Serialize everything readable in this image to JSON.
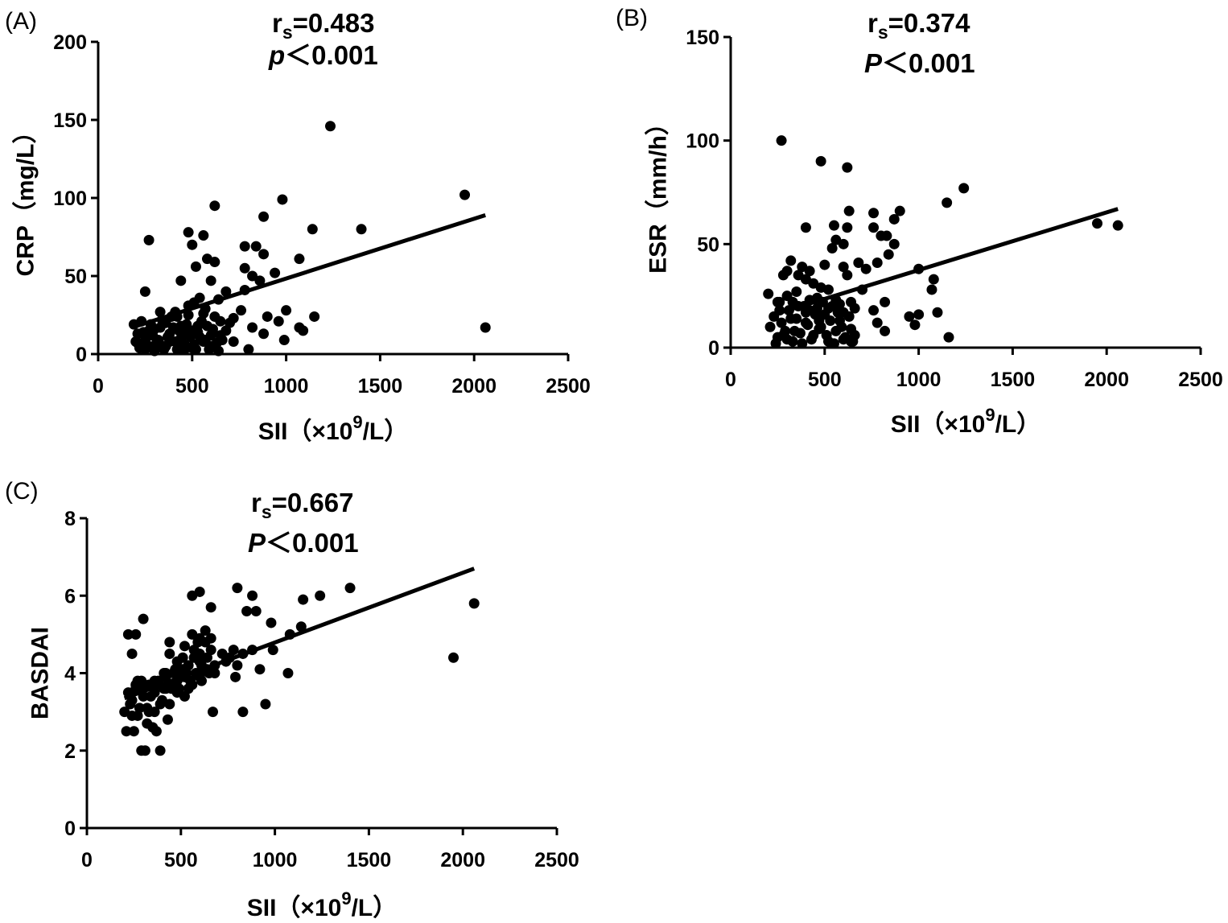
{
  "chart_data": [
    {
      "panel": "(A)",
      "type": "scatter",
      "xlabel": "SII（×10",
      "xlabel_sup": "9",
      "xlabel_tail": "/L）",
      "ylabel": "CRP（mg/L）",
      "xlim": [
        0,
        2500
      ],
      "ylim": [
        0,
        200
      ],
      "xticks": [
        "0",
        "500",
        "1000",
        "1500",
        "2000",
        "2500"
      ],
      "yticks": [
        "0",
        "50",
        "100",
        "150",
        "200"
      ],
      "stat_r_prefix": "r",
      "stat_r_sub": "s",
      "stat_r_value": "=0.483",
      "stat_p_letter": "p",
      "stat_p_value": "＜0.001",
      "regression": {
        "x0": 180,
        "y0": 17,
        "x1": 2060,
        "y1": 89
      },
      "points": [
        [
          1235,
          146
        ],
        [
          1950,
          102
        ],
        [
          980,
          99
        ],
        [
          620,
          95
        ],
        [
          880,
          88
        ],
        [
          1140,
          80
        ],
        [
          1400,
          80
        ],
        [
          480,
          78
        ],
        [
          560,
          76
        ],
        [
          270,
          73
        ],
        [
          500,
          70
        ],
        [
          780,
          69
        ],
        [
          840,
          69
        ],
        [
          880,
          64
        ],
        [
          1070,
          61
        ],
        [
          580,
          61
        ],
        [
          620,
          59
        ],
        [
          520,
          56
        ],
        [
          780,
          55
        ],
        [
          940,
          52
        ],
        [
          820,
          50
        ],
        [
          860,
          47
        ],
        [
          440,
          47
        ],
        [
          600,
          47
        ],
        [
          680,
          40
        ],
        [
          250,
          40
        ],
        [
          780,
          41
        ],
        [
          540,
          36
        ],
        [
          640,
          35
        ],
        [
          510,
          33
        ],
        [
          480,
          31
        ],
        [
          760,
          28
        ],
        [
          1000,
          28
        ],
        [
          420,
          24
        ],
        [
          560,
          26
        ],
        [
          620,
          24
        ],
        [
          650,
          21
        ],
        [
          700,
          20
        ],
        [
          900,
          24
        ],
        [
          960,
          21
        ],
        [
          1150,
          24
        ],
        [
          1070,
          17
        ],
        [
          1090,
          15
        ],
        [
          820,
          17
        ],
        [
          880,
          13
        ],
        [
          990,
          9
        ],
        [
          2060,
          17
        ],
        [
          720,
          8
        ],
        [
          800,
          3
        ],
        [
          190,
          19
        ],
        [
          210,
          13
        ],
        [
          230,
          21
        ],
        [
          250,
          9
        ],
        [
          270,
          5
        ],
        [
          290,
          12
        ],
        [
          310,
          7
        ],
        [
          330,
          17
        ],
        [
          350,
          3
        ],
        [
          370,
          11
        ],
        [
          390,
          24
        ],
        [
          410,
          8
        ],
        [
          430,
          15
        ],
        [
          450,
          4
        ],
        [
          470,
          19
        ],
        [
          490,
          11
        ],
        [
          510,
          6
        ],
        [
          530,
          14
        ],
        [
          550,
          21
        ],
        [
          570,
          9
        ],
        [
          590,
          3
        ],
        [
          610,
          16
        ],
        [
          630,
          7
        ],
        [
          650,
          12
        ],
        [
          200,
          8
        ],
        [
          220,
          4
        ],
        [
          240,
          14
        ],
        [
          260,
          11
        ],
        [
          280,
          19
        ],
        [
          300,
          2
        ],
        [
          320,
          9
        ],
        [
          340,
          22
        ],
        [
          360,
          5
        ],
        [
          380,
          13
        ],
        [
          400,
          17
        ],
        [
          420,
          3
        ],
        [
          440,
          10
        ],
        [
          460,
          6
        ],
        [
          480,
          25
        ],
        [
          500,
          15
        ],
        [
          520,
          3
        ],
        [
          540,
          11
        ],
        [
          560,
          8
        ],
        [
          580,
          18
        ],
        [
          600,
          5
        ],
        [
          640,
          2
        ],
        [
          660,
          9
        ],
        [
          270,
          15
        ],
        [
          300,
          16
        ],
        [
          330,
          6
        ],
        [
          360,
          20
        ],
        [
          380,
          8
        ],
        [
          410,
          27
        ],
        [
          440,
          18
        ],
        [
          460,
          13
        ],
        [
          500,
          4
        ],
        [
          530,
          18
        ],
        [
          570,
          29
        ],
        [
          600,
          12
        ],
        [
          680,
          15
        ],
        [
          720,
          23
        ],
        [
          330,
          27
        ],
        [
          460,
          3
        ],
        [
          250,
          3
        ],
        [
          210,
          7
        ]
      ]
    },
    {
      "panel": "(B)",
      "type": "scatter",
      "xlabel": "SII（×10",
      "xlabel_sup": "9",
      "xlabel_tail": "/L）",
      "ylabel": "ESR（mm/h）",
      "xlim": [
        0,
        2500
      ],
      "ylim": [
        0,
        150
      ],
      "xticks": [
        "0",
        "500",
        "1000",
        "1500",
        "2000",
        "2500"
      ],
      "yticks": [
        "0",
        "50",
        "100",
        "150"
      ],
      "stat_r_prefix": "r",
      "stat_r_sub": "s",
      "stat_r_value": "=0.374",
      "stat_p_letter": "P",
      "stat_p_value": "＜0.001",
      "regression": {
        "x0": 230,
        "y0": 16,
        "x1": 2060,
        "y1": 67
      },
      "points": [
        [
          270,
          100
        ],
        [
          480,
          90
        ],
        [
          620,
          87
        ],
        [
          1240,
          77
        ],
        [
          1150,
          70
        ],
        [
          630,
          66
        ],
        [
          900,
          66
        ],
        [
          760,
          65
        ],
        [
          870,
          62
        ],
        [
          1950,
          60
        ],
        [
          2060,
          59
        ],
        [
          550,
          59
        ],
        [
          400,
          58
        ],
        [
          760,
          58
        ],
        [
          620,
          58
        ],
        [
          800,
          54
        ],
        [
          830,
          54
        ],
        [
          560,
          52
        ],
        [
          600,
          50
        ],
        [
          870,
          50
        ],
        [
          540,
          48
        ],
        [
          840,
          45
        ],
        [
          680,
          41
        ],
        [
          780,
          41
        ],
        [
          320,
          42
        ],
        [
          500,
          40
        ],
        [
          600,
          39
        ],
        [
          380,
          39
        ],
        [
          420,
          37
        ],
        [
          720,
          38
        ],
        [
          1000,
          38
        ],
        [
          360,
          35
        ],
        [
          300,
          37
        ],
        [
          1080,
          33
        ],
        [
          620,
          35
        ],
        [
          400,
          33
        ],
        [
          480,
          29
        ],
        [
          700,
          28
        ],
        [
          1070,
          28
        ],
        [
          200,
          26
        ],
        [
          260,
          22
        ],
        [
          560,
          23
        ],
        [
          640,
          22
        ],
        [
          820,
          22
        ],
        [
          460,
          19
        ],
        [
          520,
          19
        ],
        [
          580,
          21
        ],
        [
          660,
          19
        ],
        [
          760,
          18
        ],
        [
          950,
          15
        ],
        [
          1100,
          17
        ],
        [
          1000,
          16
        ],
        [
          980,
          11
        ],
        [
          780,
          12
        ],
        [
          1160,
          5
        ],
        [
          820,
          8
        ],
        [
          210,
          10
        ],
        [
          230,
          15
        ],
        [
          250,
          5
        ],
        [
          270,
          12
        ],
        [
          290,
          8
        ],
        [
          310,
          18
        ],
        [
          330,
          3
        ],
        [
          350,
          14
        ],
        [
          370,
          7
        ],
        [
          390,
          20
        ],
        [
          410,
          11
        ],
        [
          430,
          4
        ],
        [
          450,
          16
        ],
        [
          470,
          9
        ],
        [
          490,
          22
        ],
        [
          510,
          6
        ],
        [
          530,
          13
        ],
        [
          550,
          2
        ],
        [
          570,
          17
        ],
        [
          590,
          10
        ],
        [
          610,
          5
        ],
        [
          630,
          15
        ],
        [
          650,
          3
        ],
        [
          240,
          2
        ],
        [
          260,
          18
        ],
        [
          280,
          6
        ],
        [
          300,
          25
        ],
        [
          320,
          14
        ],
        [
          340,
          8
        ],
        [
          360,
          20
        ],
        [
          380,
          2
        ],
        [
          400,
          12
        ],
        [
          420,
          18
        ],
        [
          440,
          6
        ],
        [
          460,
          24
        ],
        [
          480,
          10
        ],
        [
          500,
          16
        ],
        [
          520,
          3
        ],
        [
          540,
          20
        ],
        [
          560,
          8
        ],
        [
          580,
          13
        ],
        [
          600,
          4
        ],
        [
          640,
          9
        ],
        [
          660,
          6
        ],
        [
          300,
          4
        ],
        [
          420,
          23
        ],
        [
          440,
          31
        ],
        [
          350,
          27
        ],
        [
          400,
          17
        ],
        [
          470,
          13
        ],
        [
          520,
          28
        ],
        [
          280,
          35
        ],
        [
          600,
          17
        ],
        [
          250,
          22
        ],
        [
          640,
          3
        ],
        [
          330,
          22
        ]
      ]
    },
    {
      "panel": "(C)",
      "type": "scatter",
      "xlabel": "SII（×10",
      "xlabel_sup": "9",
      "xlabel_tail": "/L）",
      "ylabel": "BASDAI",
      "xlim": [
        0,
        2500
      ],
      "ylim": [
        0,
        8
      ],
      "xticks": [
        "0",
        "500",
        "1000",
        "1500",
        "2000",
        "2500"
      ],
      "yticks": [
        "0",
        "2",
        "4",
        "6",
        "8"
      ],
      "stat_r_prefix": "r",
      "stat_r_sub": "s",
      "stat_r_value": "=0.667",
      "stat_p_letter": "P",
      "stat_p_value": "＜0.001",
      "regression": {
        "x0": 200,
        "y0": 3.35,
        "x1": 2060,
        "y1": 6.7
      },
      "points": [
        [
          600,
          6.1
        ],
        [
          800,
          6.2
        ],
        [
          1400,
          6.2
        ],
        [
          560,
          6.0
        ],
        [
          880,
          6.0
        ],
        [
          1240,
          6.0
        ],
        [
          1150,
          5.9
        ],
        [
          2060,
          5.8
        ],
        [
          660,
          5.7
        ],
        [
          850,
          5.6
        ],
        [
          900,
          5.6
        ],
        [
          300,
          5.4
        ],
        [
          980,
          5.3
        ],
        [
          1140,
          5.2
        ],
        [
          630,
          5.1
        ],
        [
          1080,
          5.0
        ],
        [
          220,
          5.0
        ],
        [
          260,
          5.0
        ],
        [
          560,
          5.0
        ],
        [
          600,
          4.9
        ],
        [
          660,
          4.9
        ],
        [
          440,
          4.8
        ],
        [
          520,
          4.7
        ],
        [
          780,
          4.6
        ],
        [
          880,
          4.6
        ],
        [
          990,
          4.6
        ],
        [
          240,
          4.5
        ],
        [
          440,
          4.5
        ],
        [
          600,
          4.5
        ],
        [
          830,
          4.5
        ],
        [
          1950,
          4.4
        ],
        [
          480,
          4.3
        ],
        [
          740,
          4.3
        ],
        [
          800,
          4.2
        ],
        [
          920,
          4.1
        ],
        [
          1070,
          4.0
        ],
        [
          420,
          4.0
        ],
        [
          680,
          4.0
        ],
        [
          520,
          3.9
        ],
        [
          790,
          3.9
        ],
        [
          360,
          3.8
        ],
        [
          610,
          3.8
        ],
        [
          470,
          3.7
        ],
        [
          950,
          3.2
        ],
        [
          830,
          3.0
        ],
        [
          670,
          3.0
        ],
        [
          200,
          3.0
        ],
        [
          220,
          3.5
        ],
        [
          240,
          2.9
        ],
        [
          260,
          3.7
        ],
        [
          280,
          3.1
        ],
        [
          300,
          3.6
        ],
        [
          320,
          2.7
        ],
        [
          340,
          3.4
        ],
        [
          360,
          3.0
        ],
        [
          380,
          3.8
        ],
        [
          400,
          3.3
        ],
        [
          420,
          3.6
        ],
        [
          440,
          3.2
        ],
        [
          460,
          4.0
        ],
        [
          480,
          3.5
        ],
        [
          500,
          3.9
        ],
        [
          520,
          3.4
        ],
        [
          540,
          4.2
        ],
        [
          560,
          3.7
        ],
        [
          580,
          4.0
        ],
        [
          600,
          4.3
        ],
        [
          620,
          4.1
        ],
        [
          640,
          4.4
        ],
        [
          660,
          4.6
        ],
        [
          210,
          2.5
        ],
        [
          230,
          3.2
        ],
        [
          250,
          2.5
        ],
        [
          270,
          3.8
        ],
        [
          290,
          2.0
        ],
        [
          310,
          2.0
        ],
        [
          330,
          3.0
        ],
        [
          350,
          2.6
        ],
        [
          370,
          2.5
        ],
        [
          390,
          2.0
        ],
        [
          410,
          3.6
        ],
        [
          430,
          2.8
        ],
        [
          450,
          3.7
        ],
        [
          470,
          4.1
        ],
        [
          490,
          3.6
        ],
        [
          510,
          4.4
        ],
        [
          530,
          4.0
        ],
        [
          550,
          3.8
        ],
        [
          570,
          4.6
        ],
        [
          590,
          4.8
        ],
        [
          610,
          4.2
        ],
        [
          630,
          4.8
        ],
        [
          650,
          4.0
        ],
        [
          240,
          3.3
        ],
        [
          270,
          2.9
        ],
        [
          300,
          3.4
        ],
        [
          330,
          3.7
        ],
        [
          360,
          3.5
        ],
        [
          390,
          3.2
        ],
        [
          420,
          3.9
        ],
        [
          450,
          3.6
        ],
        [
          480,
          3.8
        ],
        [
          510,
          4.1
        ],
        [
          540,
          3.6
        ],
        [
          570,
          4.4
        ],
        [
          600,
          3.9
        ],
        [
          640,
          4.1
        ],
        [
          680,
          4.2
        ],
        [
          720,
          4.5
        ],
        [
          760,
          4.4
        ],
        [
          260,
          3.6
        ],
        [
          290,
          3.8
        ],
        [
          320,
          3.1
        ],
        [
          380,
          3.7
        ],
        [
          410,
          4.0
        ]
      ]
    }
  ]
}
